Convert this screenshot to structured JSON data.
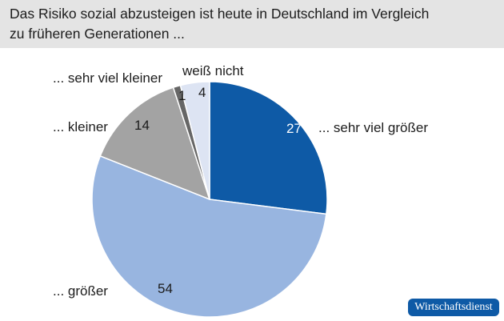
{
  "title": {
    "line1": "Das Risiko sozial abzusteigen ist heute in Deutschland im Vergleich",
    "line2": "zu früheren Generationen ..."
  },
  "chart_data": {
    "type": "pie",
    "start": "12 o'clock",
    "direction": "clockwise",
    "unit": "%",
    "slices": [
      {
        "name": "... sehr viel größer",
        "value": 27,
        "color": "#0e5aa6",
        "label_color": "#ffffff"
      },
      {
        "name": "... größer",
        "value": 54,
        "color": "#98b5e0",
        "label_color": "#1c1c1c"
      },
      {
        "name": "... kleiner",
        "value": 14,
        "color": "#a3a3a3",
        "label_color": "#1c1c1c"
      },
      {
        "name": "... sehr viel kleiner",
        "value": 1,
        "color": "#666666",
        "label_color": "#1c1c1c"
      },
      {
        "name": "weiß nicht",
        "value": 4,
        "color": "#dde4f3",
        "label_color": "#1c1c1c"
      }
    ]
  },
  "source_badge": "Wirtschaftsdienst"
}
